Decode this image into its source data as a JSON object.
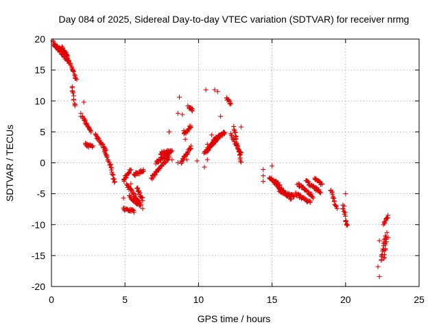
{
  "chart_data": {
    "type": "scatter",
    "title": "Day 084 of 2025, Sidereal Day-to-day VTEC variation (SDTVAR) for receiver nrmg",
    "xlabel": "GPS time / hours",
    "ylabel": "SDTVAR / TECUs",
    "xlim": [
      0,
      25
    ],
    "ylim": [
      -20,
      20
    ],
    "xticks": [
      0,
      5,
      10,
      15,
      20,
      25
    ],
    "yticks": [
      -20,
      -15,
      -10,
      -5,
      0,
      5,
      10,
      15,
      20
    ],
    "xtick_labels": [
      "0",
      "5",
      "10",
      "15",
      "20",
      "25"
    ],
    "ytick_labels": [
      "-20",
      "-15",
      "-10",
      "-5",
      "0",
      "5",
      "10",
      "15",
      "20"
    ],
    "grid": true,
    "marker": "+",
    "color": "#e00000",
    "segments": [
      {
        "x0": 0.1,
        "x1": 0.9,
        "y0": 19.5,
        "y1": 17.0
      },
      {
        "x0": 0.2,
        "x1": 1.1,
        "y0": 19.0,
        "y1": 17.5
      },
      {
        "x0": 0.7,
        "x1": 1.2,
        "y0": 18.8,
        "y1": 16.0
      },
      {
        "x0": 1.0,
        "x1": 1.7,
        "y0": 17.5,
        "y1": 13.5
      },
      {
        "x0": 1.4,
        "x1": 1.6,
        "y0": 12.5,
        "y1": 9.0
      },
      {
        "x0": 2.1,
        "x1": 2.7,
        "y0": 7.5,
        "y1": 5.0
      },
      {
        "x0": 2.3,
        "x1": 2.8,
        "y0": 3.0,
        "y1": 2.5
      },
      {
        "x0": 3.0,
        "x1": 3.7,
        "y0": 4.5,
        "y1": 2.0
      },
      {
        "x0": 3.6,
        "x1": 4.1,
        "y0": 2.0,
        "y1": -1.0
      },
      {
        "x0": 4.1,
        "x1": 4.3,
        "y0": -1.5,
        "y1": -3.2
      },
      {
        "x0": 4.9,
        "x1": 5.4,
        "y0": -3.0,
        "y1": -1.0
      },
      {
        "x0": 4.9,
        "x1": 5.6,
        "y0": -7.5,
        "y1": -7.8
      },
      {
        "x0": 5.1,
        "x1": 6.0,
        "y0": -3.5,
        "y1": -6.5
      },
      {
        "x0": 5.8,
        "x1": 6.2,
        "y0": -4.0,
        "y1": -6.0
      },
      {
        "x0": 5.3,
        "x1": 6.1,
        "y0": -5.5,
        "y1": -7.0
      },
      {
        "x0": 5.6,
        "x1": 6.3,
        "y0": -2.0,
        "y1": -1.2
      },
      {
        "x0": 6.8,
        "x1": 8.0,
        "y0": -2.5,
        "y1": 1.0
      },
      {
        "x0": 7.1,
        "x1": 8.1,
        "y0": 0.0,
        "y1": 1.8
      },
      {
        "x0": 7.4,
        "x1": 8.2,
        "y0": 1.5,
        "y1": 2.0
      },
      {
        "x0": 8.8,
        "x1": 9.5,
        "y0": 0.0,
        "y1": 2.5
      },
      {
        "x0": 9.0,
        "x1": 9.5,
        "y0": 4.5,
        "y1": 6.0
      },
      {
        "x0": 9.3,
        "x1": 9.6,
        "y0": 9.0,
        "y1": 8.5
      },
      {
        "x0": 10.4,
        "x1": 11.2,
        "y0": 1.5,
        "y1": 4.0
      },
      {
        "x0": 10.6,
        "x1": 11.5,
        "y0": 2.0,
        "y1": 4.5
      },
      {
        "x0": 11.0,
        "x1": 11.8,
        "y0": 3.5,
        "y1": 5.0
      },
      {
        "x0": 11.9,
        "x1": 12.2,
        "y0": 10.5,
        "y1": 9.5
      },
      {
        "x0": 12.2,
        "x1": 12.9,
        "y0": 4.5,
        "y1": 1.5
      },
      {
        "x0": 12.4,
        "x1": 12.9,
        "y0": 5.8,
        "y1": 0.0
      },
      {
        "x0": 14.8,
        "x1": 15.5,
        "y0": -2.5,
        "y1": -3.5
      },
      {
        "x0": 15.1,
        "x1": 16.3,
        "y0": -3.0,
        "y1": -6.0
      },
      {
        "x0": 15.5,
        "x1": 16.5,
        "y0": -4.5,
        "y1": -5.5
      },
      {
        "x0": 16.6,
        "x1": 17.6,
        "y0": -5.0,
        "y1": -6.5
      },
      {
        "x0": 16.8,
        "x1": 17.8,
        "y0": -3.5,
        "y1": -5.5
      },
      {
        "x0": 17.3,
        "x1": 18.3,
        "y0": -3.0,
        "y1": -4.8
      },
      {
        "x0": 17.9,
        "x1": 18.4,
        "y0": -2.5,
        "y1": -3.5
      },
      {
        "x0": 19.0,
        "x1": 19.4,
        "y0": -4.5,
        "y1": -7.5
      },
      {
        "x0": 19.8,
        "x1": 20.0,
        "y0": -7.0,
        "y1": -8.5
      },
      {
        "x0": 20.0,
        "x1": 20.1,
        "y0": -9.5,
        "y1": -10.0
      },
      {
        "x0": 22.4,
        "x1": 22.7,
        "y0": -16.0,
        "y1": -12.0
      },
      {
        "x0": 22.6,
        "x1": 22.9,
        "y0": -10.0,
        "y1": -8.5
      },
      {
        "x0": 22.6,
        "x1": 22.8,
        "y0": -15.5,
        "y1": -11.5
      }
    ],
    "isolated_points": [
      [
        2.0,
        7.5
      ],
      [
        2.0,
        8.0
      ],
      [
        2.2,
        9.8
      ],
      [
        8.7,
        10.6
      ],
      [
        8.6,
        8.0
      ],
      [
        8.9,
        7.8
      ],
      [
        9.1,
        3.8
      ],
      [
        9.0,
        5.2
      ],
      [
        8.0,
        5.0
      ],
      [
        10.5,
        11.8
      ],
      [
        11.1,
        11.8
      ],
      [
        11.3,
        11.5
      ],
      [
        11.5,
        7.5
      ],
      [
        10.9,
        4.5
      ],
      [
        10.6,
        0.5
      ],
      [
        10.4,
        -0.7
      ],
      [
        9.9,
        0.3
      ],
      [
        9.2,
        0.5
      ],
      [
        8.6,
        0.0
      ],
      [
        8.2,
        0.5
      ],
      [
        8.0,
        1.5
      ],
      [
        6.2,
        -7.4
      ],
      [
        5.4,
        -3.4
      ],
      [
        4.9,
        -5.7
      ],
      [
        5.0,
        -2.1
      ],
      [
        14.4,
        -3.0
      ],
      [
        14.4,
        -1.1
      ],
      [
        14.4,
        -2.1
      ],
      [
        15.0,
        -0.5
      ],
      [
        16.7,
        -3.5
      ],
      [
        17.5,
        -5.0
      ],
      [
        20.0,
        -5.0
      ],
      [
        19.9,
        -7.0
      ],
      [
        20.0,
        -9.5
      ],
      [
        22.3,
        -18.4
      ],
      [
        22.3,
        -12.6
      ],
      [
        22.9,
        -12.1
      ],
      [
        22.2,
        -16.8
      ],
      [
        12.9,
        5.8
      ],
      [
        11.7,
        4.8
      ],
      [
        10.6,
        3.0
      ]
    ]
  }
}
